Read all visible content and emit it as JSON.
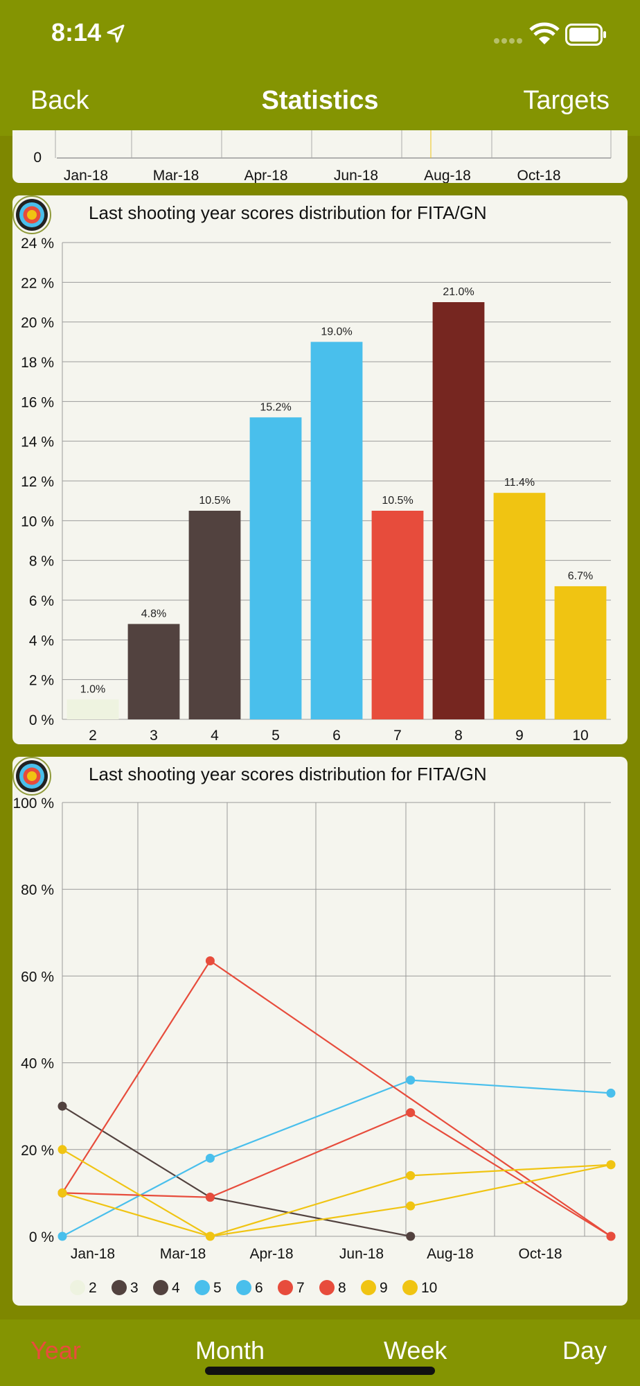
{
  "status_bar": {
    "time": "8:14"
  },
  "nav": {
    "back_label": "Back",
    "title": "Statistics",
    "targets_label": "Targets"
  },
  "top_chart": {
    "y_tick": "0",
    "x_ticks": [
      "Jan-18",
      "Mar-18",
      "Apr-18",
      "Jun-18",
      "Aug-18",
      "Oct-18"
    ]
  },
  "chart_data": [
    {
      "type": "bar",
      "title": "Last shooting year scores distribution for FITA/GN",
      "categories": [
        "2",
        "3",
        "4",
        "5",
        "6",
        "7",
        "8",
        "9",
        "10"
      ],
      "values": [
        1.0,
        4.8,
        10.5,
        15.2,
        19.0,
        10.5,
        21.0,
        11.4,
        6.7
      ],
      "value_labels": [
        "1.0%",
        "4.8%",
        "10.5%",
        "15.2%",
        "19.0%",
        "10.5%",
        "21.0%",
        "11.4%",
        "6.7%"
      ],
      "colors": [
        "#eef3e0",
        "#52423f",
        "#52423f",
        "#49bfec",
        "#49bfec",
        "#e74c3c",
        "#762620",
        "#f0c412",
        "#f0c412"
      ],
      "y_ticks": [
        "0 %",
        "2 %",
        "4 %",
        "6 %",
        "8 %",
        "10 %",
        "12 %",
        "14 %",
        "16 %",
        "18 %",
        "20 %",
        "22 %",
        "24 %"
      ],
      "ylim": [
        0,
        24
      ],
      "grid": true
    },
    {
      "type": "line",
      "title": "Last shooting year scores distribution for FITA/GN",
      "x_ticks": [
        "Jan-18",
        "Mar-18",
        "Apr-18",
        "Jun-18",
        "Aug-18",
        "Oct-18"
      ],
      "y_ticks": [
        "0 %",
        "20 %",
        "40 %",
        "60 %",
        "80 %",
        "100 %"
      ],
      "ylim": [
        0,
        100
      ],
      "grid": true,
      "legend_position": "bottom",
      "series": [
        {
          "name": "2",
          "color": "#eef3e0",
          "points": []
        },
        {
          "name": "3",
          "color": "#52423f",
          "points": [
            [
              "2018-01-01",
              30
            ],
            [
              "2018-04-01",
              9
            ],
            [
              "2018-08-01",
              0
            ]
          ]
        },
        {
          "name": "4",
          "color": "#52423f",
          "points": []
        },
        {
          "name": "5",
          "color": "#49bfec",
          "points": [
            [
              "2018-01-01",
              0
            ],
            [
              "2018-04-01",
              18
            ],
            [
              "2018-08-01",
              36
            ],
            [
              "2018-12-01",
              33
            ]
          ]
        },
        {
          "name": "6",
          "color": "#49bfec",
          "points": []
        },
        {
          "name": "7",
          "color": "#e74c3c",
          "points": [
            [
              "2018-01-01",
              10
            ],
            [
              "2018-04-01",
              63.5
            ],
            [
              "2018-12-01",
              0
            ]
          ]
        },
        {
          "name": "8",
          "color": "#e74c3c",
          "points": [
            [
              "2018-01-01",
              10
            ],
            [
              "2018-04-01",
              9
            ],
            [
              "2018-08-01",
              28.5
            ],
            [
              "2018-12-01",
              0
            ]
          ]
        },
        {
          "name": "9",
          "color": "#f0c412",
          "points": [
            [
              "2018-01-01",
              20
            ],
            [
              "2018-04-01",
              0
            ],
            [
              "2018-08-01",
              14
            ],
            [
              "2018-12-01",
              16.5
            ]
          ]
        },
        {
          "name": "10",
          "color": "#f0c412",
          "points": [
            [
              "2018-01-01",
              10
            ],
            [
              "2018-04-01",
              0
            ],
            [
              "2018-08-01",
              7
            ],
            [
              "2018-12-01",
              16.5
            ]
          ]
        }
      ]
    }
  ],
  "tabs": [
    "Year",
    "Month",
    "Week",
    "Day"
  ],
  "colors": {
    "bar_background": "#849402",
    "page_background": "#7e8700",
    "card_background": "#f5f5ee",
    "active_tab": "#e84d3c"
  }
}
